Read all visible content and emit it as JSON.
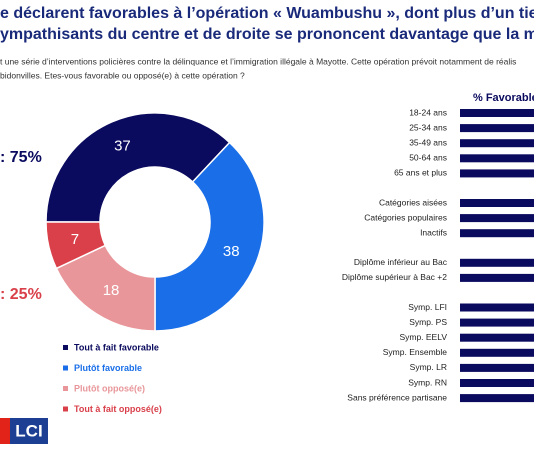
{
  "chart_data": {
    "type": "donut",
    "title_lines": [
      "e déclarent favorables à l’opération « Wuambushu », dont plus d’un tiers se",
      "ympathisants du centre et de droite se prononcent davantage que la moyenn"
    ],
    "subtitle_lines": [
      "t une série d’interventions policières contre la délinquance et l’immigration illégale à Mayotte. Cette opération prévoit notamment de réalis",
      "bidonvilles. Etes-vous favorable ou opposé(e) à cette opération ?"
    ],
    "totals": [
      {
        "label": ": 75%",
        "color": "#0a0a5e"
      },
      {
        "label": ": 25%",
        "color": "#d9404a"
      }
    ],
    "categories": [
      "Tout à fait favorable",
      "Plutôt favorable",
      "Plutôt opposé(e)",
      "Tout à fait opposé(e)"
    ],
    "values": [
      37,
      38,
      18,
      7
    ],
    "colors": [
      "#0a0a5e",
      "#1a6fe8",
      "#e8969a",
      "#d9404a"
    ],
    "bar_header": "% Favorable",
    "bar_groups": [
      [
        "18-24 ans",
        "25-34 ans",
        "35-49 ans",
        "50-64 ans",
        "65 ans et plus"
      ],
      [
        "Catégories aisées",
        "Catégories populaires",
        "Inactifs"
      ],
      [
        "Diplôme inférieur au Bac",
        "Diplôme supérieur à Bac +2"
      ],
      [
        "Symp. LFI",
        "Symp. PS",
        "Symp. EELV",
        "Symp. Ensemble",
        "Symp. LR",
        "Symp. RN",
        "Sans préférence partisane"
      ]
    ],
    "bar_color": "#0a0a5e",
    "logo": "LCI"
  }
}
